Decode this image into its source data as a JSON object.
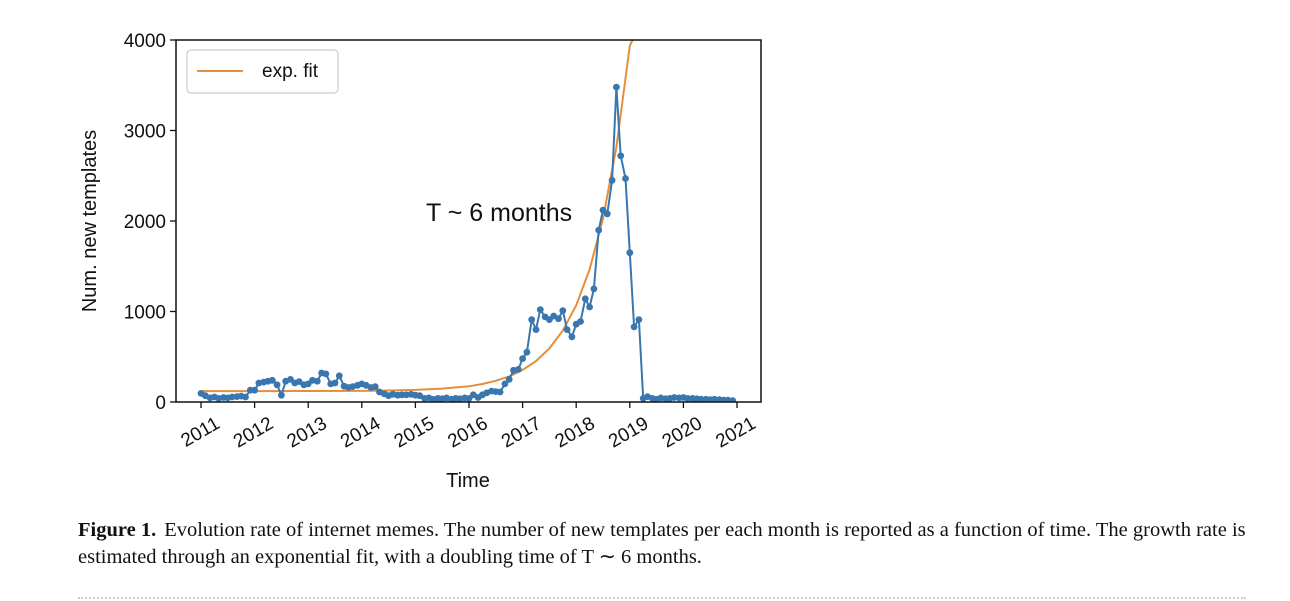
{
  "chart_data": {
    "type": "line",
    "xlabel": "Time",
    "ylabel": "Num. new templates",
    "xlim": [
      2011,
      2021
    ],
    "ylim": [
      0,
      4000
    ],
    "x_ticks": [
      "2011",
      "2012",
      "2013",
      "2014",
      "2015",
      "2016",
      "2017",
      "2018",
      "2019",
      "2020",
      "2021"
    ],
    "y_ticks": [
      "0",
      "1000",
      "2000",
      "3000",
      "4000"
    ],
    "annotation": "T ~ 6 months",
    "legend": {
      "position": "top-left",
      "entries": [
        "exp. fit"
      ]
    },
    "series": [
      {
        "color": "#3a76af",
        "marker": "circle",
        "points": [
          [
            2011.0,
            95
          ],
          [
            2011.08,
            70
          ],
          [
            2011.17,
            45
          ],
          [
            2011.25,
            55
          ],
          [
            2011.33,
            40
          ],
          [
            2011.42,
            50
          ],
          [
            2011.5,
            45
          ],
          [
            2011.58,
            55
          ],
          [
            2011.67,
            60
          ],
          [
            2011.75,
            65
          ],
          [
            2011.83,
            55
          ],
          [
            2011.92,
            130
          ],
          [
            2012.0,
            130
          ],
          [
            2012.08,
            210
          ],
          [
            2012.17,
            220
          ],
          [
            2012.25,
            230
          ],
          [
            2012.33,
            240
          ],
          [
            2012.42,
            190
          ],
          [
            2012.5,
            75
          ],
          [
            2012.58,
            230
          ],
          [
            2012.67,
            250
          ],
          [
            2012.75,
            210
          ],
          [
            2012.83,
            225
          ],
          [
            2012.92,
            190
          ],
          [
            2013.0,
            200
          ],
          [
            2013.08,
            240
          ],
          [
            2013.17,
            230
          ],
          [
            2013.25,
            320
          ],
          [
            2013.33,
            310
          ],
          [
            2013.42,
            200
          ],
          [
            2013.5,
            210
          ],
          [
            2013.58,
            290
          ],
          [
            2013.67,
            175
          ],
          [
            2013.75,
            160
          ],
          [
            2013.83,
            170
          ],
          [
            2013.92,
            185
          ],
          [
            2014.0,
            200
          ],
          [
            2014.08,
            185
          ],
          [
            2014.17,
            160
          ],
          [
            2014.25,
            170
          ],
          [
            2014.33,
            110
          ],
          [
            2014.42,
            90
          ],
          [
            2014.5,
            70
          ],
          [
            2014.58,
            85
          ],
          [
            2014.67,
            75
          ],
          [
            2014.75,
            80
          ],
          [
            2014.83,
            80
          ],
          [
            2014.92,
            85
          ],
          [
            2015.0,
            75
          ],
          [
            2015.08,
            70
          ],
          [
            2015.17,
            40
          ],
          [
            2015.25,
            45
          ],
          [
            2015.33,
            30
          ],
          [
            2015.42,
            40
          ],
          [
            2015.5,
            35
          ],
          [
            2015.58,
            45
          ],
          [
            2015.67,
            30
          ],
          [
            2015.75,
            40
          ],
          [
            2015.83,
            35
          ],
          [
            2015.92,
            45
          ],
          [
            2016.0,
            40
          ],
          [
            2016.08,
            80
          ],
          [
            2016.17,
            50
          ],
          [
            2016.25,
            80
          ],
          [
            2016.33,
            100
          ],
          [
            2016.42,
            120
          ],
          [
            2016.5,
            115
          ],
          [
            2016.58,
            110
          ],
          [
            2016.67,
            200
          ],
          [
            2016.75,
            250
          ],
          [
            2016.83,
            350
          ],
          [
            2016.92,
            360
          ],
          [
            2017.0,
            480
          ],
          [
            2017.08,
            550
          ],
          [
            2017.17,
            910
          ],
          [
            2017.25,
            800
          ],
          [
            2017.33,
            1020
          ],
          [
            2017.42,
            940
          ],
          [
            2017.5,
            910
          ],
          [
            2017.58,
            950
          ],
          [
            2017.67,
            920
          ],
          [
            2017.75,
            1010
          ],
          [
            2017.83,
            800
          ],
          [
            2017.92,
            720
          ],
          [
            2018.0,
            860
          ],
          [
            2018.08,
            890
          ],
          [
            2018.17,
            1140
          ],
          [
            2018.25,
            1050
          ],
          [
            2018.33,
            1250
          ],
          [
            2018.42,
            1900
          ],
          [
            2018.5,
            2120
          ],
          [
            2018.58,
            2080
          ],
          [
            2018.67,
            2450
          ],
          [
            2018.75,
            3480
          ],
          [
            2018.83,
            2720
          ],
          [
            2018.92,
            2470
          ],
          [
            2019.0,
            1650
          ],
          [
            2019.08,
            830
          ],
          [
            2019.17,
            910
          ],
          [
            2019.25,
            40
          ],
          [
            2019.33,
            60
          ],
          [
            2019.42,
            40
          ],
          [
            2019.5,
            30
          ],
          [
            2019.58,
            45
          ],
          [
            2019.67,
            35
          ],
          [
            2019.75,
            40
          ],
          [
            2019.83,
            50
          ],
          [
            2019.92,
            45
          ],
          [
            2020.0,
            50
          ],
          [
            2020.08,
            40
          ],
          [
            2020.17,
            40
          ],
          [
            2020.25,
            35
          ],
          [
            2020.33,
            30
          ],
          [
            2020.42,
            30
          ],
          [
            2020.5,
            25
          ],
          [
            2020.58,
            30
          ],
          [
            2020.67,
            25
          ],
          [
            2020.75,
            20
          ],
          [
            2020.83,
            20
          ],
          [
            2020.92,
            15
          ]
        ]
      },
      {
        "name": "exp. fit",
        "color": "#e58f3d",
        "marker": "none",
        "points": [
          [
            2011.0,
            120
          ],
          [
            2012.0,
            120
          ],
          [
            2013.0,
            121
          ],
          [
            2014.0,
            123
          ],
          [
            2014.5,
            127
          ],
          [
            2015.0,
            134
          ],
          [
            2015.5,
            148
          ],
          [
            2016.0,
            174
          ],
          [
            2016.25,
            199
          ],
          [
            2016.5,
            234
          ],
          [
            2016.75,
            283
          ],
          [
            2017.0,
            354
          ],
          [
            2017.25,
            452
          ],
          [
            2017.5,
            592
          ],
          [
            2017.75,
            789
          ],
          [
            2018.0,
            1069
          ],
          [
            2018.25,
            1465
          ],
          [
            2018.5,
            2025
          ],
          [
            2018.75,
            2817
          ],
          [
            2019.0,
            3936
          ],
          [
            2019.05,
            4000
          ]
        ]
      }
    ]
  },
  "caption": {
    "label": "Figure 1.",
    "text": "Evolution rate of internet memes. The number of new templates per each month is reported as a function of time. The growth rate is estimated through an exponential fit, with a doubling time of T ∼ 6 months."
  }
}
